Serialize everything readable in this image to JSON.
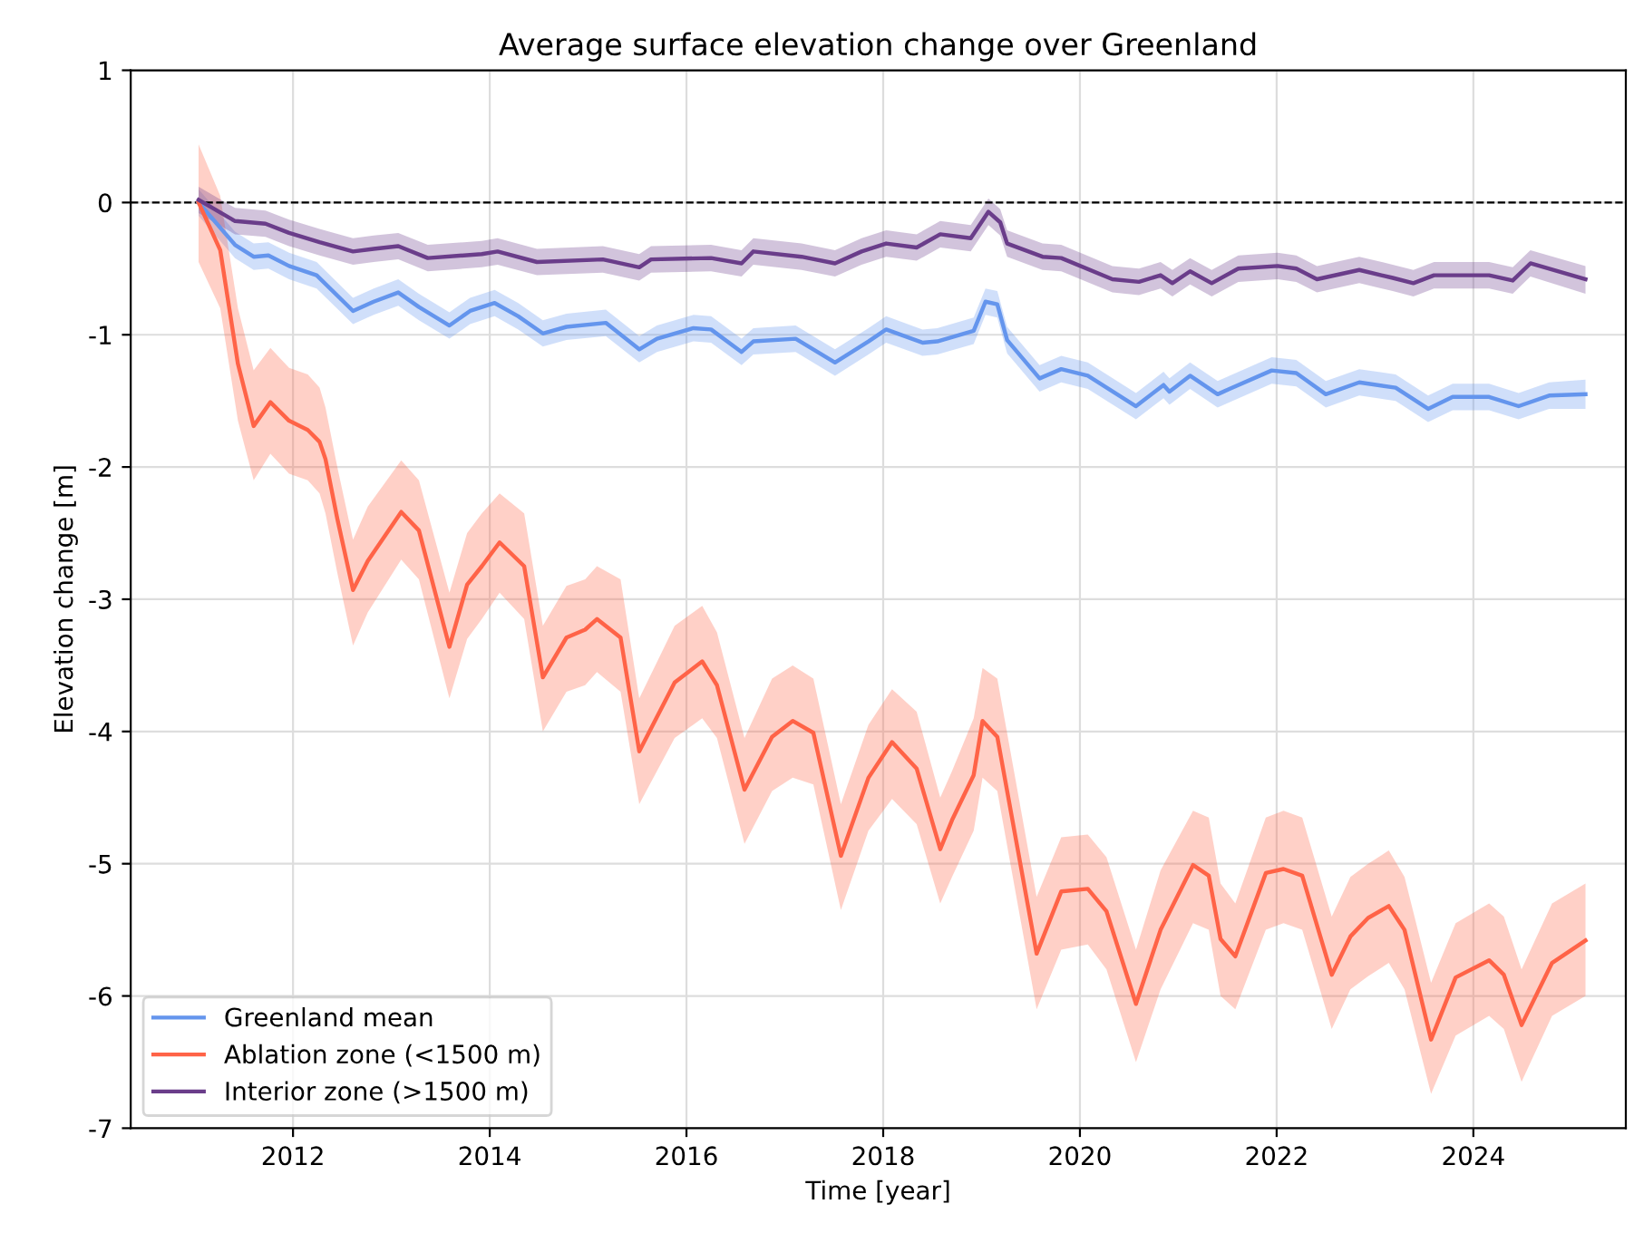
{
  "chart_data": {
    "type": "line",
    "title": "Average surface elevation change over Greenland",
    "xlabel": "Time [year]",
    "ylabel": "Elevation change [m]",
    "xlim": [
      2010.35,
      2025.55
    ],
    "xticks": [
      2012,
      2014,
      2016,
      2018,
      2020,
      2022,
      2024
    ],
    "ylim": [
      -7,
      1
    ],
    "yticks": [
      -7,
      -6,
      -5,
      -4,
      -3,
      -2,
      -1,
      0,
      1
    ],
    "grid": true,
    "legend": "bottom left",
    "line_style": "solid",
    "marker": "none",
    "ref_lines": [
      {
        "axis": "y",
        "value": 0,
        "label": null,
        "color": "#000000",
        "line_style": "dashed"
      }
    ],
    "series": [
      {
        "name": "Greenland mean",
        "color": "#6495ed",
        "x": [
          2011.04,
          2011.41,
          2011.6,
          2011.75,
          2011.96,
          2012.24,
          2012.61,
          2012.82,
          2013.07,
          2013.28,
          2013.59,
          2013.8,
          2014.05,
          2014.29,
          2014.54,
          2014.78,
          2015.18,
          2015.52,
          2015.7,
          2016.07,
          2016.25,
          2016.56,
          2016.68,
          2017.11,
          2017.51,
          2017.85,
          2018.03,
          2018.4,
          2018.55,
          2018.92,
          2019.04,
          2019.16,
          2019.26,
          2019.59,
          2019.81,
          2020.08,
          2020.57,
          2020.85,
          2020.91,
          2021.12,
          2021.4,
          2021.52,
          2021.95,
          2022.2,
          2022.5,
          2022.84,
          2023.21,
          2023.54,
          2023.79,
          2024.16,
          2024.46,
          2024.77,
          2025.14
        ],
        "values": [
          0,
          -0.32,
          -0.41,
          -0.4,
          -0.48,
          -0.55,
          -0.82,
          -0.75,
          -0.68,
          -0.79,
          -0.93,
          -0.82,
          -0.76,
          -0.86,
          -0.99,
          -0.94,
          -0.91,
          -1.11,
          -1.03,
          -0.95,
          -0.96,
          -1.13,
          -1.05,
          -1.03,
          -1.21,
          -1.05,
          -0.96,
          -1.06,
          -1.05,
          -0.97,
          -0.75,
          -0.77,
          -1.04,
          -1.33,
          -1.26,
          -1.31,
          -1.54,
          -1.38,
          -1.43,
          -1.31,
          -1.45,
          -1.41,
          -1.27,
          -1.29,
          -1.45,
          -1.36,
          -1.4,
          -1.56,
          -1.47,
          -1.47,
          -1.54,
          -1.46,
          -1.45
        ],
        "lower": [
          -0.1,
          -0.42,
          -0.51,
          -0.5,
          -0.58,
          -0.65,
          -0.92,
          -0.85,
          -0.78,
          -0.89,
          -1.03,
          -0.92,
          -0.86,
          -0.96,
          -1.09,
          -1.04,
          -1.01,
          -1.21,
          -1.13,
          -1.05,
          -1.06,
          -1.23,
          -1.15,
          -1.13,
          -1.31,
          -1.15,
          -1.06,
          -1.16,
          -1.15,
          -1.07,
          -0.85,
          -0.87,
          -1.14,
          -1.43,
          -1.36,
          -1.41,
          -1.64,
          -1.48,
          -1.53,
          -1.41,
          -1.55,
          -1.51,
          -1.37,
          -1.39,
          -1.55,
          -1.46,
          -1.5,
          -1.66,
          -1.57,
          -1.57,
          -1.64,
          -1.56,
          -1.56
        ],
        "upper": [
          0.1,
          -0.22,
          -0.31,
          -0.3,
          -0.38,
          -0.45,
          -0.72,
          -0.65,
          -0.58,
          -0.69,
          -0.83,
          -0.72,
          -0.66,
          -0.76,
          -0.89,
          -0.84,
          -0.81,
          -1.01,
          -0.93,
          -0.85,
          -0.86,
          -1.03,
          -0.95,
          -0.93,
          -1.11,
          -0.95,
          -0.86,
          -0.96,
          -0.95,
          -0.87,
          -0.65,
          -0.67,
          -0.94,
          -1.23,
          -1.16,
          -1.21,
          -1.44,
          -1.28,
          -1.33,
          -1.21,
          -1.35,
          -1.31,
          -1.17,
          -1.19,
          -1.35,
          -1.26,
          -1.3,
          -1.46,
          -1.37,
          -1.37,
          -1.44,
          -1.36,
          -1.34
        ]
      },
      {
        "name": "Ablation zone (<1500 m)",
        "color": "#ff6347",
        "x": [
          2011.04,
          2011.26,
          2011.44,
          2011.6,
          2011.77,
          2011.96,
          2012.15,
          2012.27,
          2012.33,
          2012.45,
          2012.61,
          2012.76,
          2013.1,
          2013.28,
          2013.59,
          2013.77,
          2013.92,
          2014.1,
          2014.35,
          2014.54,
          2014.78,
          2014.97,
          2015.09,
          2015.33,
          2015.52,
          2015.88,
          2016.16,
          2016.31,
          2016.59,
          2016.87,
          2017.08,
          2017.29,
          2017.57,
          2017.85,
          2018.09,
          2018.34,
          2018.58,
          2018.7,
          2018.92,
          2019.01,
          2019.16,
          2019.56,
          2019.81,
          2020.08,
          2020.27,
          2020.57,
          2020.82,
          2021.15,
          2021.31,
          2021.43,
          2021.58,
          2021.89,
          2022.07,
          2022.26,
          2022.56,
          2022.75,
          2022.93,
          2023.14,
          2023.3,
          2023.57,
          2023.82,
          2024.16,
          2024.31,
          2024.49,
          2024.8,
          2025.14
        ],
        "values": [
          0,
          -0.36,
          -1.22,
          -1.69,
          -1.51,
          -1.65,
          -1.72,
          -1.81,
          -1.94,
          -2.39,
          -2.93,
          -2.71,
          -2.34,
          -2.48,
          -3.36,
          -2.89,
          -2.75,
          -2.57,
          -2.75,
          -3.59,
          -3.29,
          -3.23,
          -3.15,
          -3.29,
          -4.15,
          -3.63,
          -3.47,
          -3.65,
          -4.44,
          -4.04,
          -3.92,
          -4.01,
          -4.94,
          -4.35,
          -4.08,
          -4.28,
          -4.89,
          -4.67,
          -4.33,
          -3.92,
          -4.04,
          -5.68,
          -5.21,
          -5.19,
          -5.36,
          -6.06,
          -5.5,
          -5.01,
          -5.09,
          -5.57,
          -5.7,
          -5.07,
          -5.04,
          -5.09,
          -5.84,
          -5.55,
          -5.41,
          -5.32,
          -5.5,
          -6.33,
          -5.86,
          -5.73,
          -5.84,
          -6.22,
          -5.75,
          -5.58
        ],
        "lower": [
          -0.45,
          -0.8,
          -1.65,
          -2.1,
          -1.9,
          -2.05,
          -2.1,
          -2.2,
          -2.35,
          -2.8,
          -3.35,
          -3.1,
          -2.7,
          -2.85,
          -3.75,
          -3.3,
          -3.15,
          -2.95,
          -3.15,
          -4.0,
          -3.7,
          -3.65,
          -3.55,
          -3.7,
          -4.55,
          -4.05,
          -3.9,
          -4.05,
          -4.85,
          -4.45,
          -4.35,
          -4.4,
          -5.35,
          -4.75,
          -4.51,
          -4.7,
          -5.3,
          -5.1,
          -4.75,
          -4.35,
          -4.45,
          -6.1,
          -5.65,
          -5.61,
          -5.8,
          -6.5,
          -5.95,
          -5.45,
          -5.5,
          -6.0,
          -6.1,
          -5.5,
          -5.45,
          -5.5,
          -6.25,
          -5.95,
          -5.85,
          -5.75,
          -5.95,
          -6.74,
          -6.3,
          -6.15,
          -6.25,
          -6.65,
          -6.15,
          -6.0
        ],
        "upper": [
          0.44,
          0.05,
          -0.8,
          -1.27,
          -1.1,
          -1.25,
          -1.3,
          -1.4,
          -1.55,
          -2.0,
          -2.55,
          -2.3,
          -1.95,
          -2.1,
          -2.95,
          -2.5,
          -2.35,
          -2.2,
          -2.35,
          -3.2,
          -2.9,
          -2.85,
          -2.75,
          -2.85,
          -3.75,
          -3.2,
          -3.05,
          -3.25,
          -4.05,
          -3.6,
          -3.5,
          -3.6,
          -4.55,
          -3.95,
          -3.68,
          -3.85,
          -4.5,
          -4.3,
          -3.9,
          -3.52,
          -3.6,
          -5.25,
          -4.8,
          -4.78,
          -4.95,
          -5.65,
          -5.05,
          -4.6,
          -4.65,
          -5.15,
          -5.3,
          -4.65,
          -4.6,
          -4.65,
          -5.4,
          -5.1,
          -5.0,
          -4.9,
          -5.1,
          -5.9,
          -5.45,
          -5.3,
          -5.4,
          -5.8,
          -5.3,
          -5.15
        ]
      },
      {
        "name": "Interior zone (>1500 m)",
        "color": "#6a3d8a",
        "x": [
          2011.04,
          2011.41,
          2011.72,
          2011.96,
          2012.27,
          2012.61,
          2012.82,
          2013.07,
          2013.37,
          2013.92,
          2014.08,
          2014.48,
          2015.15,
          2015.52,
          2015.64,
          2016.25,
          2016.56,
          2016.68,
          2017.17,
          2017.51,
          2017.78,
          2018.03,
          2018.34,
          2018.58,
          2018.89,
          2019.07,
          2019.19,
          2019.26,
          2019.62,
          2019.81,
          2020.33,
          2020.6,
          2020.82,
          2020.94,
          2021.12,
          2021.34,
          2021.61,
          2022.01,
          2022.2,
          2022.41,
          2022.84,
          2023.18,
          2023.39,
          2023.6,
          2024.16,
          2024.4,
          2024.58,
          2025.14
        ],
        "values": [
          0.02,
          -0.14,
          -0.16,
          -0.23,
          -0.3,
          -0.37,
          -0.35,
          -0.33,
          -0.42,
          -0.39,
          -0.37,
          -0.45,
          -0.43,
          -0.49,
          -0.43,
          -0.42,
          -0.46,
          -0.37,
          -0.41,
          -0.46,
          -0.37,
          -0.31,
          -0.34,
          -0.24,
          -0.27,
          -0.07,
          -0.15,
          -0.31,
          -0.41,
          -0.42,
          -0.58,
          -0.6,
          -0.55,
          -0.61,
          -0.52,
          -0.61,
          -0.5,
          -0.48,
          -0.5,
          -0.58,
          -0.51,
          -0.57,
          -0.61,
          -0.55,
          -0.55,
          -0.59,
          -0.46,
          -0.58
        ],
        "lower": [
          -0.08,
          -0.24,
          -0.26,
          -0.33,
          -0.4,
          -0.47,
          -0.45,
          -0.43,
          -0.52,
          -0.49,
          -0.47,
          -0.55,
          -0.53,
          -0.59,
          -0.53,
          -0.52,
          -0.56,
          -0.47,
          -0.51,
          -0.56,
          -0.47,
          -0.41,
          -0.44,
          -0.34,
          -0.37,
          -0.17,
          -0.25,
          -0.41,
          -0.51,
          -0.52,
          -0.68,
          -0.7,
          -0.65,
          -0.71,
          -0.62,
          -0.71,
          -0.6,
          -0.58,
          -0.6,
          -0.68,
          -0.61,
          -0.67,
          -0.71,
          -0.65,
          -0.65,
          -0.69,
          -0.56,
          -0.69
        ],
        "upper": [
          0.12,
          -0.04,
          -0.06,
          -0.13,
          -0.2,
          -0.27,
          -0.25,
          -0.23,
          -0.32,
          -0.29,
          -0.27,
          -0.35,
          -0.33,
          -0.39,
          -0.33,
          -0.32,
          -0.36,
          -0.27,
          -0.31,
          -0.36,
          -0.27,
          -0.21,
          -0.24,
          -0.14,
          -0.17,
          0.03,
          -0.05,
          -0.21,
          -0.31,
          -0.32,
          -0.48,
          -0.5,
          -0.45,
          -0.51,
          -0.42,
          -0.51,
          -0.4,
          -0.38,
          -0.4,
          -0.48,
          -0.41,
          -0.47,
          -0.51,
          -0.45,
          -0.45,
          -0.49,
          -0.36,
          -0.48
        ]
      }
    ]
  }
}
